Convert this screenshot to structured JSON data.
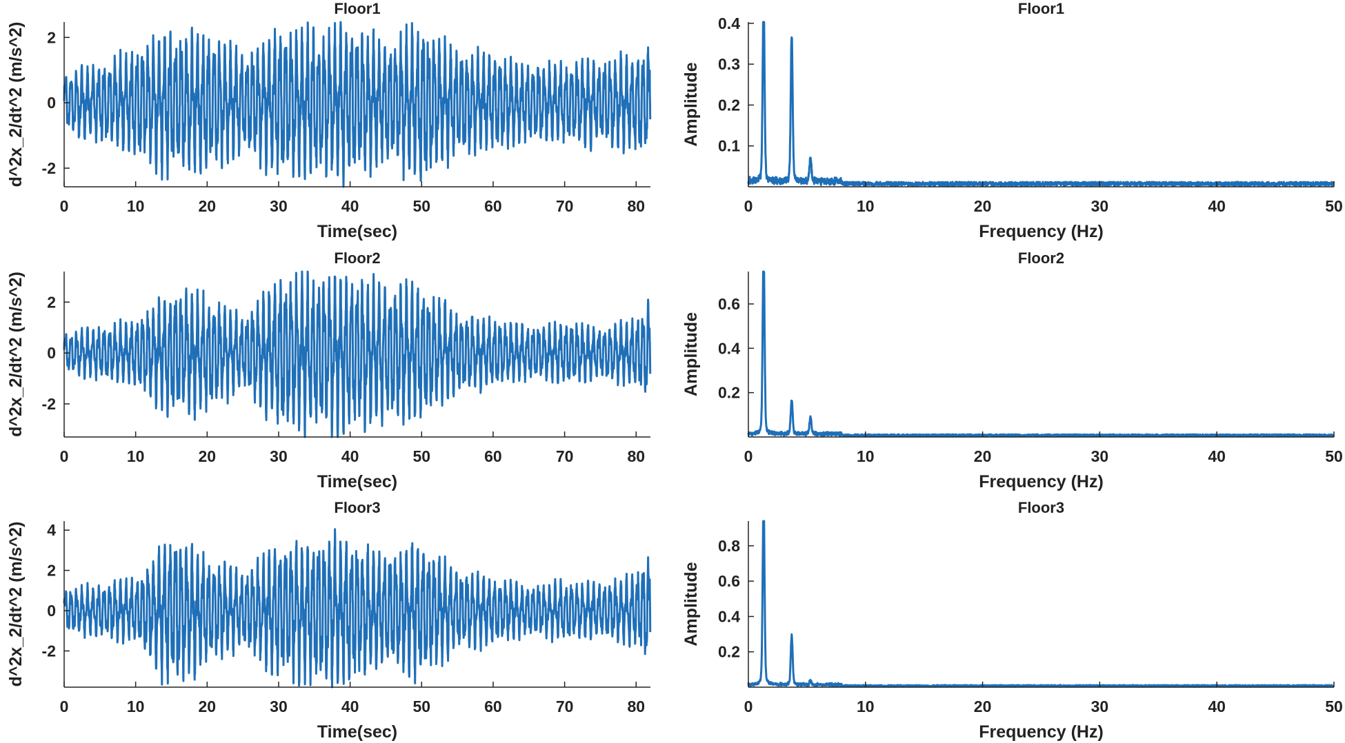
{
  "chart_data": [
    {
      "type": "line",
      "title": "Floor1",
      "xlabel": "Time(sec)",
      "ylabel": "d^2x_2/dt^2 (m/s^2)",
      "xlim": [
        0,
        82
      ],
      "ylim": [
        -2.57,
        2.47
      ],
      "xticks": [
        0,
        10,
        20,
        30,
        40,
        50,
        60,
        70,
        80
      ],
      "yticks": [
        -2,
        0,
        2
      ],
      "envelope_t": [
        0,
        5,
        10,
        15,
        20,
        25,
        30,
        35,
        40,
        45,
        50,
        55,
        60,
        65,
        70,
        75,
        80,
        82
      ],
      "envelope": [
        0.9,
        1.2,
        1.6,
        2.2,
        2.1,
        1.5,
        2.2,
        2.2,
        2.3,
        1.8,
        2.4,
        1.6,
        1.4,
        1.2,
        1.2,
        1.3,
        1.5,
        1.8
      ]
    },
    {
      "type": "line",
      "title": "Floor2",
      "xlabel": "Time(sec)",
      "ylabel": "d^2x_2/dt^2 (m/s^2)",
      "xlim": [
        0,
        82
      ],
      "ylim": [
        -3.3,
        3.2
      ],
      "xticks": [
        0,
        10,
        20,
        30,
        40,
        50,
        60,
        70,
        80
      ],
      "yticks": [
        -2,
        0,
        2
      ],
      "envelope_t": [
        0,
        5,
        10,
        15,
        20,
        25,
        30,
        35,
        40,
        45,
        50,
        55,
        60,
        65,
        70,
        75,
        80,
        82
      ],
      "envelope": [
        0.8,
        1.0,
        1.3,
        2.4,
        2.2,
        1.4,
        2.9,
        3.0,
        3.1,
        2.6,
        2.6,
        1.6,
        1.3,
        1.0,
        1.2,
        1.0,
        1.3,
        2.2
      ]
    },
    {
      "type": "line",
      "title": "Floor3",
      "xlabel": "Time(sec)",
      "ylabel": "d^2x_2/dt^2 (m/s^2)",
      "xlim": [
        0,
        82
      ],
      "ylim": [
        -3.8,
        4.45
      ],
      "xticks": [
        0,
        10,
        20,
        30,
        40,
        50,
        60,
        70,
        80
      ],
      "yticks": [
        -2,
        0,
        2,
        4
      ],
      "envelope_t": [
        0,
        5,
        10,
        15,
        20,
        25,
        30,
        35,
        40,
        45,
        50,
        55,
        60,
        65,
        70,
        75,
        80,
        82
      ],
      "envelope": [
        1.0,
        1.3,
        1.6,
        3.8,
        2.6,
        1.8,
        3.3,
        3.5,
        3.5,
        2.8,
        3.4,
        2.0,
        1.6,
        1.2,
        1.5,
        1.3,
        1.8,
        2.8
      ]
    },
    {
      "type": "line",
      "title": "Floor1",
      "xlabel": "Frequency (Hz)",
      "ylabel": "Amplitude",
      "xlim": [
        0,
        50
      ],
      "ylim": [
        0,
        0.403
      ],
      "xticks": [
        0,
        10,
        20,
        30,
        40,
        50
      ],
      "yticks": [
        0.1,
        0.2,
        0.3,
        0.4
      ],
      "peaks": [
        {
          "f": 1.3,
          "a": 0.405
        },
        {
          "f": 3.7,
          "a": 0.32
        },
        {
          "f": 5.3,
          "a": 0.055
        }
      ],
      "noise_floor": 0.01
    },
    {
      "type": "line",
      "title": "Floor2",
      "xlabel": "Frequency (Hz)",
      "ylabel": "Amplitude",
      "xlim": [
        0,
        50
      ],
      "ylim": [
        0,
        0.746
      ],
      "xticks": [
        0,
        10,
        20,
        30,
        40,
        50
      ],
      "yticks": [
        0.2,
        0.4,
        0.6
      ],
      "peaks": [
        {
          "f": 1.3,
          "a": 0.745
        },
        {
          "f": 3.7,
          "a": 0.14
        },
        {
          "f": 5.3,
          "a": 0.07
        }
      ],
      "noise_floor": 0.01
    },
    {
      "type": "line",
      "title": "Floor3",
      "xlabel": "Frequency (Hz)",
      "ylabel": "Amplitude",
      "xlim": [
        0,
        50
      ],
      "ylim": [
        0,
        0.94
      ],
      "xticks": [
        0,
        10,
        20,
        30,
        40,
        50
      ],
      "yticks": [
        0.2,
        0.4,
        0.6,
        0.8
      ],
      "peaks": [
        {
          "f": 1.3,
          "a": 0.935
        },
        {
          "f": 3.7,
          "a": 0.25
        },
        {
          "f": 5.3,
          "a": 0.02
        }
      ],
      "noise_floor": 0.01
    }
  ],
  "colors": {
    "series": "#1f6fb8",
    "axis": "#222222"
  }
}
